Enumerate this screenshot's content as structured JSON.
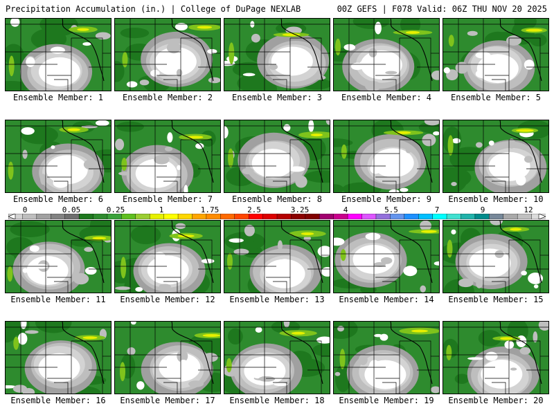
{
  "header": {
    "left": "Precipitation Accumulation (in.) | College of DuPage NEXLAB",
    "right": "00Z GEFS | F078 Valid: 06Z THU NOV 20 2025"
  },
  "colorbar": {
    "tick_labels": [
      "0",
      "0.05",
      "0.25",
      "1",
      "1.75",
      "2.5",
      "3.25",
      "4",
      "5.5",
      "7",
      "9",
      "12"
    ],
    "colors": [
      "#d3d3d3",
      "#bebebe",
      "#a0a0a0",
      "#828282",
      "#6e6e6e",
      "#1e781e",
      "#2e8b2e",
      "#3aa13a",
      "#5fbf1f",
      "#9acd32",
      "#e6f000",
      "#ffff00",
      "#ffd700",
      "#ffa500",
      "#ff8c00",
      "#ff6a00",
      "#ff4500",
      "#ff0000",
      "#dc0000",
      "#b40000",
      "#8b0000",
      "#800000",
      "#a0006e",
      "#c8008c",
      "#ff00ff",
      "#dd55ff",
      "#9370db",
      "#6495ed",
      "#1e90ff",
      "#00bfff",
      "#00ffff",
      "#40e0d0",
      "#20b2aa",
      "#008b8b",
      "#778899",
      "#a9a9a9",
      "#c0c0c0",
      "#dcdcdc"
    ]
  },
  "panels": [
    {
      "label": "Ensemble Member: 1"
    },
    {
      "label": "Ensemble Member: 2"
    },
    {
      "label": "Ensemble Member: 3"
    },
    {
      "label": "Ensemble Member: 4"
    },
    {
      "label": "Ensemble Member: 5"
    },
    {
      "label": "Ensemble Member: 6"
    },
    {
      "label": "Ensemble Member: 7"
    },
    {
      "label": "Ensemble Member: 8"
    },
    {
      "label": "Ensemble Member: 9"
    },
    {
      "label": "Ensemble Member: 10"
    },
    {
      "label": "Ensemble Member: 11"
    },
    {
      "label": "Ensemble Member: 12"
    },
    {
      "label": "Ensemble Member: 13"
    },
    {
      "label": "Ensemble Member: 14"
    },
    {
      "label": "Ensemble Member: 15"
    },
    {
      "label": "Ensemble Member: 16"
    },
    {
      "label": "Ensemble Member: 17"
    },
    {
      "label": "Ensemble Member: 18"
    },
    {
      "label": "Ensemble Member: 19"
    },
    {
      "label": "Ensemble Member: 20"
    }
  ]
}
